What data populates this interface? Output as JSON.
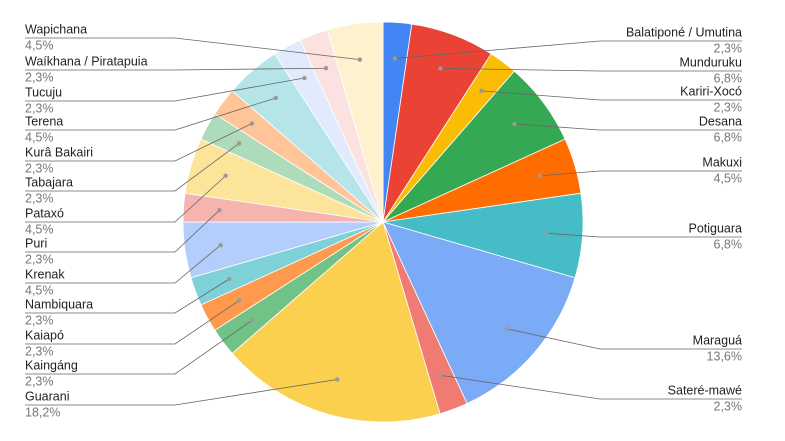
{
  "chart_data": {
    "type": "pie",
    "categories": [
      "Balatiponé / Umutina",
      "Munduruku",
      "Kariri-Xocó",
      "Desana",
      "Makuxi",
      "Potiguara",
      "Maraguá",
      "Sateré-mawé",
      "Guarani",
      "Kaingáng",
      "Kaiapó",
      "Nambiquara",
      "Krenak",
      "Puri",
      "Pataxó",
      "Tabajara",
      "Kurâ Bakairi",
      "Terena",
      "Tucuju",
      "Waíkhana / Piratapuia",
      "Wapichana"
    ],
    "values": [
      2.3,
      6.8,
      2.3,
      6.8,
      4.5,
      6.8,
      13.6,
      2.3,
      18.2,
      2.3,
      2.3,
      2.3,
      4.5,
      2.3,
      4.5,
      2.3,
      2.3,
      4.5,
      2.3,
      2.3,
      4.5
    ],
    "value_labels": [
      "2,3%",
      "6,8%",
      "2,3%",
      "6,8%",
      "4,5%",
      "6,8%",
      "13,6%",
      "2,3%",
      "18,2%",
      "2,3%",
      "2,3%",
      "2,3%",
      "4,5%",
      "2,3%",
      "4,5%",
      "2,3%",
      "2,3%",
      "4,5%",
      "2,3%",
      "2,3%",
      "4,5%"
    ],
    "colors": [
      "#4285f4",
      "#ea4335",
      "#fbbc04",
      "#34a853",
      "#ff6d01",
      "#46bdc6",
      "#7baaf7",
      "#f07b72",
      "#fcd04f",
      "#71c287",
      "#ff994d",
      "#7ed1d7",
      "#b3cefb",
      "#f7b4ae",
      "#fde49b",
      "#aedcba",
      "#ffc599",
      "#b5e5e8",
      "#e1ebfd",
      "#fbe1df",
      "#fef1cd"
    ]
  }
}
